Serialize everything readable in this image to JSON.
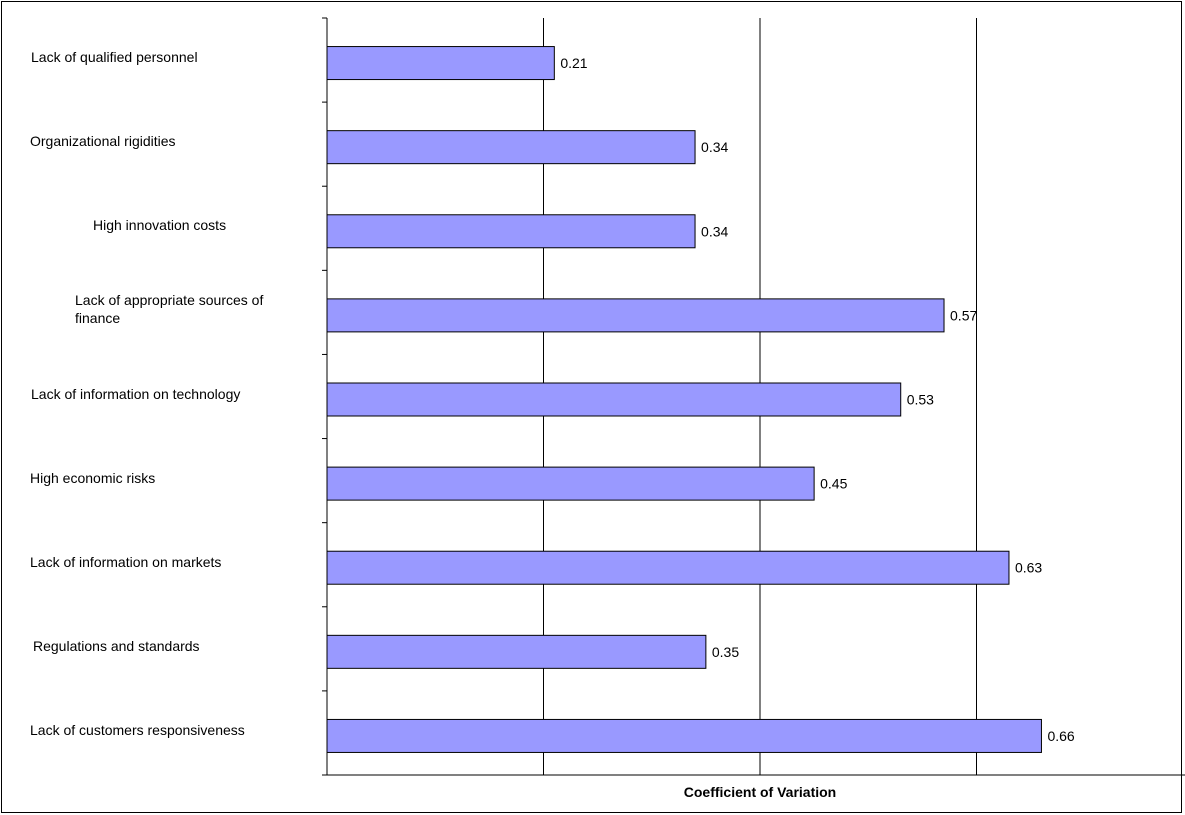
{
  "chart_data": {
    "type": "bar",
    "orientation": "horizontal",
    "categories": [
      "Lack of qualified personnel",
      "Organizational rigidities",
      "High innovation costs",
      "Lack of appropriate sources of\n  finance",
      "Lack of information on technology",
      "High economic risks",
      "Lack of information on markets",
      "Regulations and standards",
      "Lack of customers responsiveness"
    ],
    "values": [
      0.21,
      0.34,
      0.34,
      0.57,
      0.53,
      0.45,
      0.63,
      0.35,
      0.66
    ],
    "data_labels": [
      "0.21",
      "0.34",
      "0.34",
      "0.57",
      "0.53",
      "0.45",
      "0.63",
      "0.35",
      "0.66"
    ],
    "title": "",
    "xlabel": "Coefficient of Variation",
    "ylabel": "",
    "xlim": [
      0,
      0.8
    ],
    "gridlines": "vertical",
    "bar_color": "#9999ff",
    "bar_edge_color": "#000000"
  }
}
